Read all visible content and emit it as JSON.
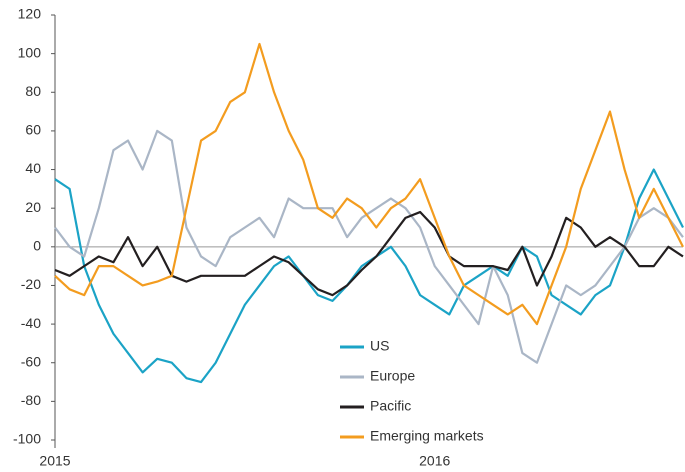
{
  "chart_data": {
    "type": "line",
    "x": [
      0,
      2,
      4,
      6,
      8,
      10,
      12,
      14,
      16,
      18,
      20,
      22,
      24,
      26,
      28,
      30,
      32,
      34,
      36,
      38,
      40,
      42,
      44,
      46,
      48,
      50,
      52,
      54,
      56,
      58,
      60,
      62,
      64,
      66,
      68,
      70,
      72,
      74,
      76,
      78,
      80,
      82,
      84,
      86
    ],
    "xlim": [
      0,
      86
    ],
    "xticks": [
      {
        "value": 0,
        "label": "2015"
      },
      {
        "value": 52,
        "label": "2016"
      }
    ],
    "ylim": [
      -100,
      120
    ],
    "yticks": [
      -100,
      -80,
      -60,
      -40,
      -20,
      0,
      20,
      40,
      60,
      80,
      100,
      120
    ],
    "zero_line": true,
    "legend": "bottom-center",
    "series": [
      {
        "name": "US",
        "color": "#1ba3c6",
        "values": [
          35,
          30,
          -10,
          -30,
          -45,
          -55,
          -65,
          -58,
          -60,
          -68,
          -70,
          -60,
          -45,
          -30,
          -20,
          -10,
          -5,
          -15,
          -25,
          -28,
          -20,
          -10,
          -5,
          0,
          -10,
          -25,
          -30,
          -35,
          -20,
          -15,
          -10,
          -15,
          0,
          -5,
          -25,
          -30,
          -35,
          -25,
          -20,
          0,
          25,
          40,
          25,
          10
        ]
      },
      {
        "name": "Europe",
        "color": "#aab6c6",
        "values": [
          10,
          0,
          -5,
          20,
          50,
          55,
          40,
          60,
          55,
          10,
          -5,
          -10,
          5,
          10,
          15,
          5,
          25,
          20,
          20,
          20,
          5,
          15,
          20,
          25,
          20,
          10,
          -10,
          -20,
          -30,
          -40,
          -10,
          -25,
          -55,
          -60,
          -40,
          -20,
          -25,
          -20,
          -10,
          0,
          15,
          20,
          15,
          5
        ]
      },
      {
        "name": "Pacific",
        "color": "#231f20",
        "values": [
          -12,
          -15,
          -10,
          -5,
          -8,
          5,
          -10,
          0,
          -15,
          -18,
          -15,
          -15,
          -15,
          -15,
          -10,
          -5,
          -8,
          -15,
          -22,
          -25,
          -20,
          -12,
          -5,
          5,
          15,
          18,
          10,
          -5,
          -10,
          -10,
          -10,
          -12,
          0,
          -20,
          -5,
          15,
          10,
          0,
          5,
          0,
          -10,
          -10,
          0,
          -5
        ]
      },
      {
        "name": "Emerging markets",
        "color": "#f39c1f",
        "values": [
          -15,
          -22,
          -25,
          -10,
          -10,
          -15,
          -20,
          -18,
          -15,
          20,
          55,
          60,
          75,
          80,
          105,
          80,
          60,
          45,
          20,
          15,
          25,
          20,
          10,
          20,
          25,
          35,
          15,
          -5,
          -20,
          -25,
          -30,
          -35,
          -30,
          -40,
          -20,
          0,
          30,
          50,
          70,
          40,
          15,
          30,
          15,
          0
        ]
      }
    ]
  }
}
